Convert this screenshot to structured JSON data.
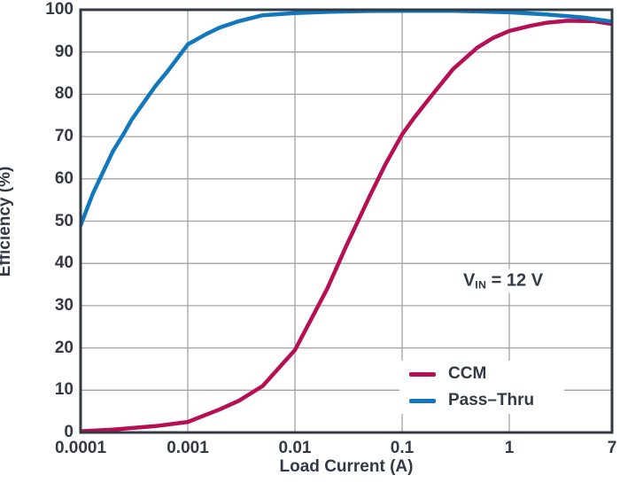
{
  "colors": {
    "text": "#333a45",
    "axis_border": "#333a45",
    "gridline": "#a3a3a3",
    "ccm_line": "#b60f53",
    "passthru_line": "#1178bd",
    "background": "#ffffff"
  },
  "chart_data": {
    "type": "line",
    "title": "",
    "xlabel": "Load Current (A)",
    "ylabel": "Efficiency (%)",
    "x_scale": "log",
    "xlim": [
      0.0001,
      7
    ],
    "ylim": [
      0,
      100
    ],
    "grid": true,
    "legend_position": "lower right",
    "x_ticks": [
      0.0001,
      0.001,
      0.01,
      0.1,
      1,
      7
    ],
    "x_tick_labels": [
      "0.0001",
      "0.001",
      "0.01",
      "0.1",
      "1",
      "7"
    ],
    "y_ticks": [
      0,
      10,
      20,
      30,
      40,
      50,
      60,
      70,
      80,
      90,
      100
    ],
    "annotation": {
      "prefix": "V",
      "sub": "IN",
      "suffix": " = 12 V"
    },
    "series": [
      {
        "name": "CCM",
        "color": "#b60f53",
        "points": [
          [
            0.0001,
            0.3
          ],
          [
            0.0002,
            0.7
          ],
          [
            0.0005,
            1.5
          ],
          [
            0.001,
            2.5
          ],
          [
            0.002,
            5.5
          ],
          [
            0.003,
            7.5
          ],
          [
            0.005,
            11
          ],
          [
            0.01,
            19.5
          ],
          [
            0.02,
            34
          ],
          [
            0.03,
            44
          ],
          [
            0.05,
            56
          ],
          [
            0.07,
            63.5
          ],
          [
            0.1,
            70.5
          ],
          [
            0.13,
            74.5
          ],
          [
            0.2,
            80.5
          ],
          [
            0.3,
            86
          ],
          [
            0.5,
            91
          ],
          [
            0.7,
            93.3
          ],
          [
            1,
            95
          ],
          [
            1.5,
            96.2
          ],
          [
            2,
            96.9
          ],
          [
            3,
            97.4
          ],
          [
            5,
            97.3
          ],
          [
            7,
            96.6
          ]
        ]
      },
      {
        "name": "Pass–Thru",
        "color": "#1178bd",
        "points": [
          [
            0.0001,
            49
          ],
          [
            0.00013,
            56.5
          ],
          [
            0.0002,
            66.5
          ],
          [
            0.00025,
            70.5
          ],
          [
            0.0003,
            74
          ],
          [
            0.0004,
            78.5
          ],
          [
            0.0005,
            82
          ],
          [
            0.00065,
            85.5
          ],
          [
            0.001,
            91.8
          ],
          [
            0.0015,
            94.3
          ],
          [
            0.002,
            95.8
          ],
          [
            0.003,
            97.3
          ],
          [
            0.005,
            98.7
          ],
          [
            0.01,
            99.2
          ],
          [
            0.02,
            99.5
          ],
          [
            0.05,
            99.7
          ],
          [
            0.1,
            99.75
          ],
          [
            0.3,
            99.75
          ],
          [
            0.5,
            99.6
          ],
          [
            1,
            99.4
          ],
          [
            2,
            98.9
          ],
          [
            4,
            98.2
          ],
          [
            7,
            97.2
          ]
        ]
      }
    ]
  }
}
